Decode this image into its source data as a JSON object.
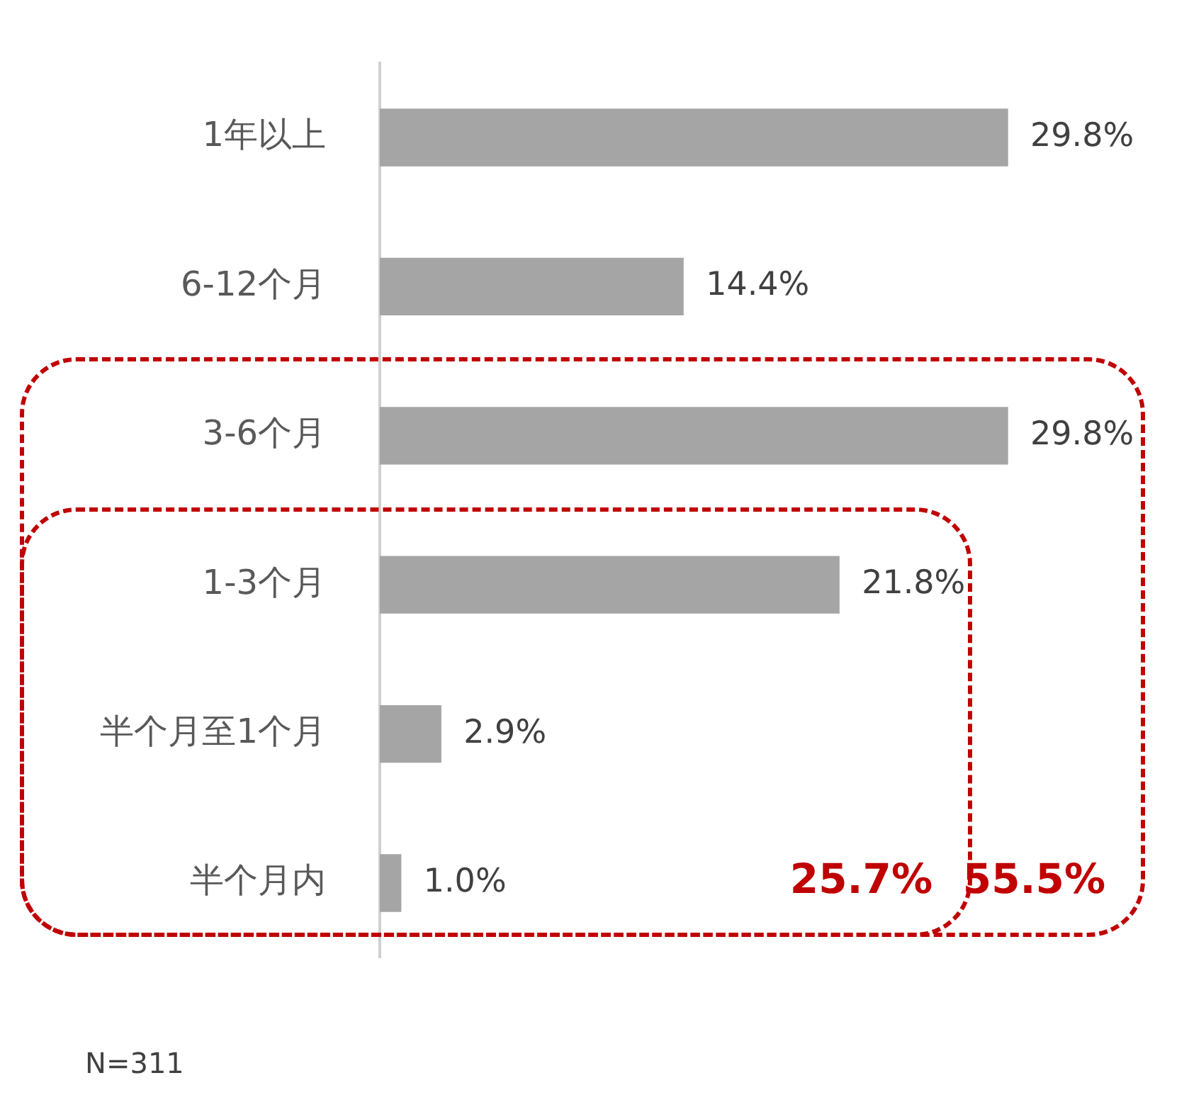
{
  "chart_data": {
    "type": "bar",
    "orientation": "horizontal",
    "categories": [
      "1年以上",
      "6-12个月",
      "3-6个月",
      "1-3个月",
      "半个月至1个月",
      "半个月内"
    ],
    "values": [
      29.8,
      14.4,
      29.8,
      21.8,
      2.9,
      1.0
    ],
    "value_labels": [
      "29.8%",
      "14.4%",
      "29.8%",
      "21.8%",
      "2.9%",
      "1.0%"
    ],
    "color": "#a5a5a5",
    "legend": false,
    "annotations": [
      "25.7%",
      "55.5%",
      "N=311"
    ]
  }
}
